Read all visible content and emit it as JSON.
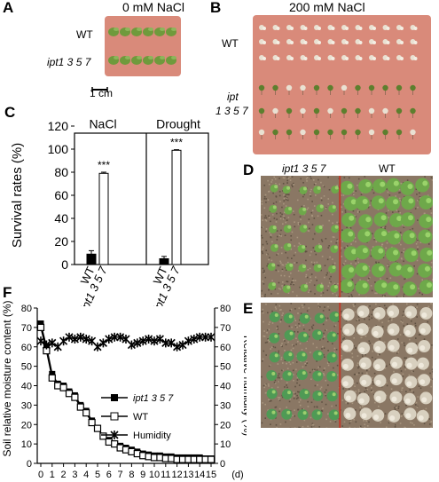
{
  "panels": {
    "a": {
      "letter": "A",
      "title": "0 mM NaCl",
      "row_labels": [
        "WT",
        "ipt1 3 5 7"
      ],
      "scale_bar": "1 cm",
      "colors": {
        "plate": "#d98a7a",
        "seedling": "#6f9a3c"
      }
    },
    "b": {
      "letter": "B",
      "title": "200 mM NaCl",
      "row_labels": [
        "WT",
        "ipt",
        "1 3 5 7"
      ],
      "colors": {
        "plate": "#d98a7a",
        "bleached": "#e9e1d2",
        "green": "#5d7f2e"
      }
    },
    "c": {
      "letter": "C",
      "group_labels": [
        "NaCl",
        "Drought"
      ],
      "significance": "***"
    },
    "d": {
      "letter": "D",
      "left_label": "ipt1 3 5 7",
      "right_label": "WT",
      "colors": {
        "soil": "#8a7764",
        "divider": "#c03a2b",
        "leaf": "#6ea84a"
      }
    },
    "e": {
      "letter": "E",
      "colors": {
        "soil": "#8a7764",
        "divider": "#c03a2b",
        "leaf": "#4f9a55",
        "dead": "#d8d0bf"
      }
    },
    "f": {
      "letter": "F"
    }
  },
  "chart_data": [
    {
      "type": "bar",
      "panel": "C",
      "ylabel": "Survival rates (%)",
      "ylim": [
        0,
        120
      ],
      "yticks": [
        "0",
        "20",
        "40",
        "60",
        "80",
        "100",
        "120"
      ],
      "groups": [
        "NaCl",
        "Drought"
      ],
      "categories": [
        "WT",
        "ipt1 3 5 7"
      ],
      "series": [
        {
          "group": "NaCl",
          "values": [
            9,
            79
          ],
          "errors": [
            3,
            1
          ],
          "fills": [
            "#000000",
            "#ffffff"
          ]
        },
        {
          "group": "Drought",
          "values": [
            5,
            99
          ],
          "errors": [
            2,
            0.5
          ],
          "fills": [
            "#000000",
            "#ffffff"
          ]
        }
      ],
      "annotations": [
        "***",
        "***"
      ]
    },
    {
      "type": "line",
      "panel": "F",
      "ylabel": "Soil relative moisture content (%)",
      "y2label": "Relative humidity (%)",
      "xunit": "(d)",
      "x": [
        0,
        0.5,
        1,
        1.5,
        2,
        2.5,
        3,
        3.5,
        4,
        4.5,
        5,
        5.5,
        6,
        6.5,
        7,
        7.5,
        8,
        8.5,
        9,
        9.5,
        10,
        10.5,
        11,
        11.5,
        12,
        12.5,
        13,
        13.5,
        14,
        14.5,
        15
      ],
      "xticks": [
        "0",
        "1",
        "2",
        "3",
        "4",
        "5",
        "6",
        "7",
        "8",
        "9",
        "10",
        "11",
        "12",
        "13",
        "14",
        "15"
      ],
      "ylim": [
        0,
        80
      ],
      "yticks": [
        "0",
        "10",
        "20",
        "30",
        "40",
        "50",
        "60",
        "70",
        "80"
      ],
      "series": [
        {
          "name": "ipt1 3 5 7",
          "marker": "filled-square",
          "values": [
            72,
            60,
            46,
            41,
            40,
            37,
            35,
            30,
            27,
            22,
            18,
            14,
            12,
            10,
            9,
            8,
            7,
            6,
            5,
            4.5,
            4,
            4,
            3.5,
            3.5,
            3,
            3,
            3,
            3,
            3,
            2.5,
            2.5
          ]
        },
        {
          "name": "WT",
          "marker": "open-square",
          "values": [
            70,
            58,
            44,
            40,
            39,
            36,
            34,
            29,
            26,
            21,
            18,
            14,
            11,
            10,
            8,
            7,
            6,
            5,
            4,
            3.5,
            3,
            3,
            2.5,
            2.5,
            2,
            2,
            2,
            2,
            2,
            2,
            2
          ]
        },
        {
          "name": "Humidity",
          "marker": "asterisk",
          "axis": "right",
          "values": [
            63,
            61,
            62,
            60,
            63,
            65,
            64,
            65,
            64,
            63,
            60,
            62,
            64,
            65,
            65,
            64,
            61,
            62,
            63,
            64,
            63,
            64,
            62,
            62,
            60,
            61,
            63,
            64,
            65,
            65,
            65
          ]
        }
      ]
    }
  ]
}
